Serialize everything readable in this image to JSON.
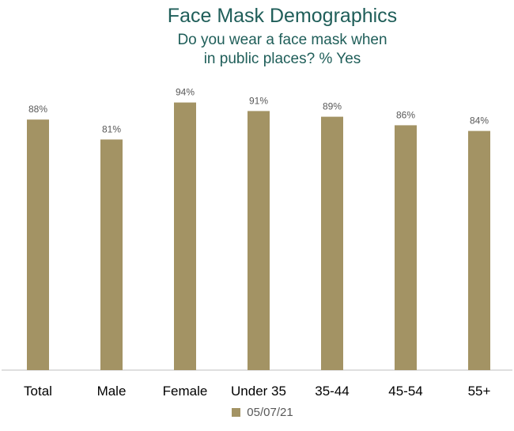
{
  "chart_data": {
    "type": "bar",
    "title": "Face Mask Demographics",
    "subtitle_lines": [
      "Do you wear a face mask when",
      "in public places? % Yes"
    ],
    "categories": [
      "Total",
      "Male",
      "Female",
      "Under 35",
      "35-44",
      "45-54",
      "55+"
    ],
    "series": [
      {
        "name": "05/07/21",
        "values": [
          88,
          81,
          94,
          91,
          89,
          86,
          84
        ],
        "labels": [
          "88%",
          "81%",
          "94%",
          "91%",
          "89%",
          "86%",
          "84%"
        ]
      }
    ],
    "ylim": [
      0,
      100
    ],
    "grid": false,
    "legend_position": "bottom",
    "colors": {
      "bar": "#a39364",
      "title": "#1f5e59",
      "axis": "#bfbfbf",
      "label": "#595959",
      "category": "#000000"
    }
  }
}
